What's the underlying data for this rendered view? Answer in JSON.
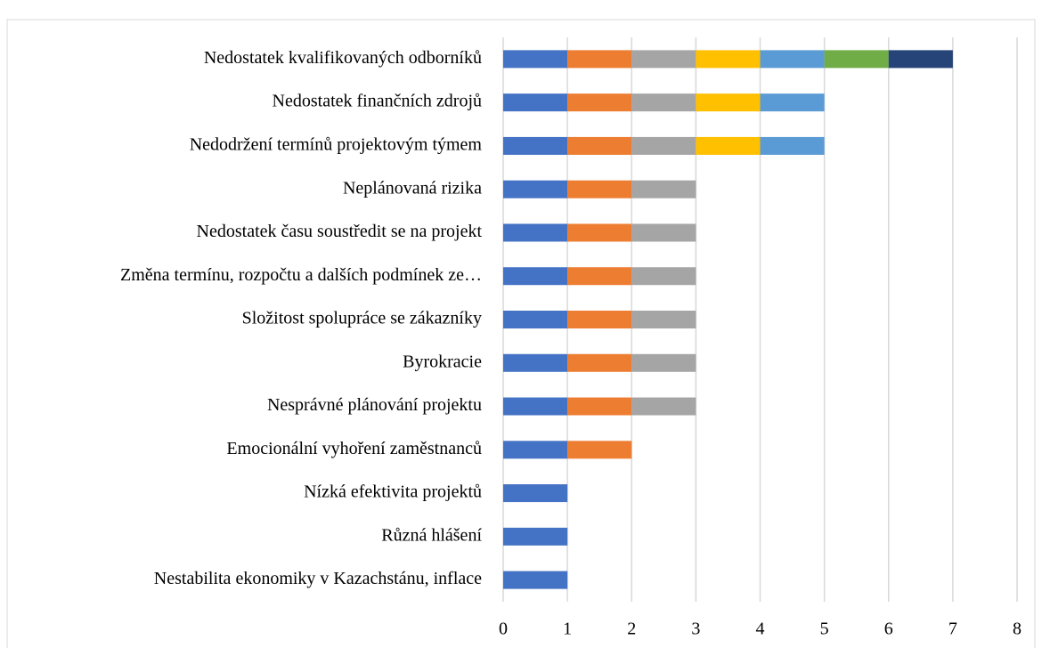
{
  "chart_data": {
    "type": "stacked-barh",
    "categories": [
      "Nedostatek kvalifikovaných odborníků",
      "Nedostatek finančních zdrojů",
      "Nedodržení termínů projektovým týmem",
      "Neplánovaná rizika",
      "Nedostatek času soustředit se na projekt",
      "Změna termínu, rozpočtu a dalších podmínek ze…",
      "Složitost spolupráce se zákazníky",
      "Byrokracie",
      "Nesprávné plánování projektu",
      "Emocionální vyhoření zaměstnanců",
      "Nízká efektivita projektů",
      "Různá hlášení",
      "Nestabilita ekonomiky v Kazachstánu, inflace"
    ],
    "series": [
      {
        "color": "#4472c4",
        "values": [
          1,
          1,
          1,
          1,
          1,
          1,
          1,
          1,
          1,
          1,
          1,
          1,
          1
        ]
      },
      {
        "color": "#ed7d31",
        "values": [
          1,
          1,
          1,
          1,
          1,
          1,
          1,
          1,
          1,
          1,
          null,
          null,
          null
        ]
      },
      {
        "color": "#a5a5a5",
        "values": [
          1,
          1,
          1,
          1,
          1,
          1,
          1,
          1,
          1,
          null,
          null,
          null,
          null
        ]
      },
      {
        "color": "#ffc000",
        "values": [
          1,
          1,
          1,
          null,
          null,
          null,
          null,
          null,
          null,
          null,
          null,
          null,
          null
        ]
      },
      {
        "color": "#5b9bd5",
        "values": [
          1,
          1,
          1,
          null,
          null,
          null,
          null,
          null,
          null,
          null,
          null,
          null,
          null
        ]
      },
      {
        "color": "#70ad47",
        "values": [
          1,
          null,
          null,
          null,
          null,
          null,
          null,
          null,
          null,
          null,
          null,
          null,
          null
        ]
      },
      {
        "color": "#264478",
        "values": [
          1,
          null,
          null,
          null,
          null,
          null,
          null,
          null,
          null,
          null,
          null,
          null,
          null
        ]
      }
    ],
    "xlim": [
      0,
      8
    ],
    "xticks": [
      0,
      1,
      2,
      3,
      4,
      5,
      6,
      7,
      8
    ],
    "grid": true
  }
}
